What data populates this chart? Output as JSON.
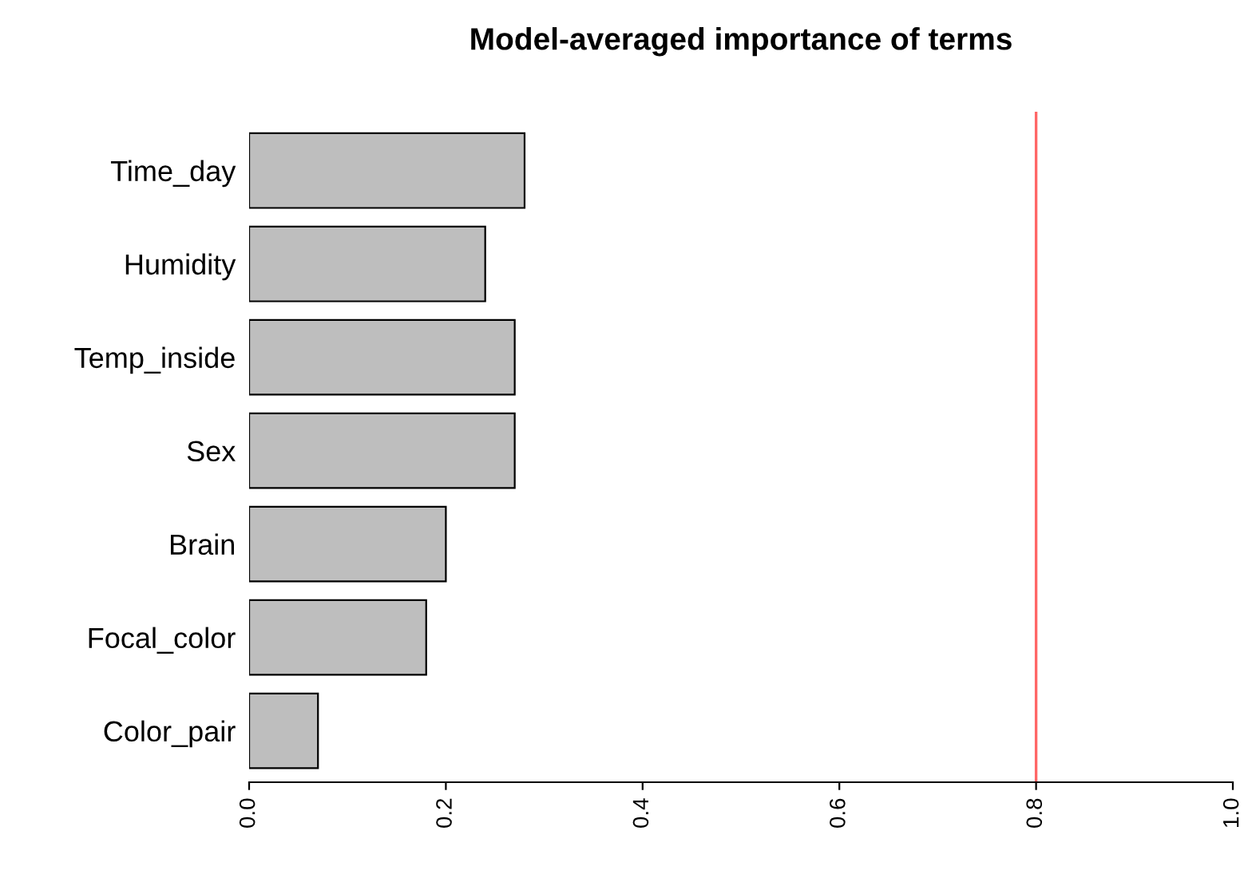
{
  "chart_data": {
    "type": "bar",
    "orientation": "horizontal",
    "title": "Model-averaged importance of terms",
    "categories": [
      "Time_day",
      "Humidity",
      "Temp_inside",
      "Sex",
      "Brain",
      "Focal_color",
      "Color_pair"
    ],
    "values": [
      0.28,
      0.24,
      0.27,
      0.27,
      0.2,
      0.18,
      0.07
    ],
    "color": "#bebebe",
    "xlim": [
      0,
      1
    ],
    "xticks": [
      {
        "value": 0,
        "label": "0.0"
      },
      {
        "value": 0.2,
        "label": "0.2"
      },
      {
        "value": 0.4,
        "label": "0.4"
      },
      {
        "value": 0.6,
        "label": "0.6"
      },
      {
        "value": 0.8,
        "label": "0.8"
      },
      {
        "value": 1,
        "label": "1.0"
      }
    ],
    "ref_lines": [
      {
        "axis": "x",
        "value": 0.8,
        "color": "#ff6666"
      }
    ],
    "grid": false,
    "legend": false
  }
}
